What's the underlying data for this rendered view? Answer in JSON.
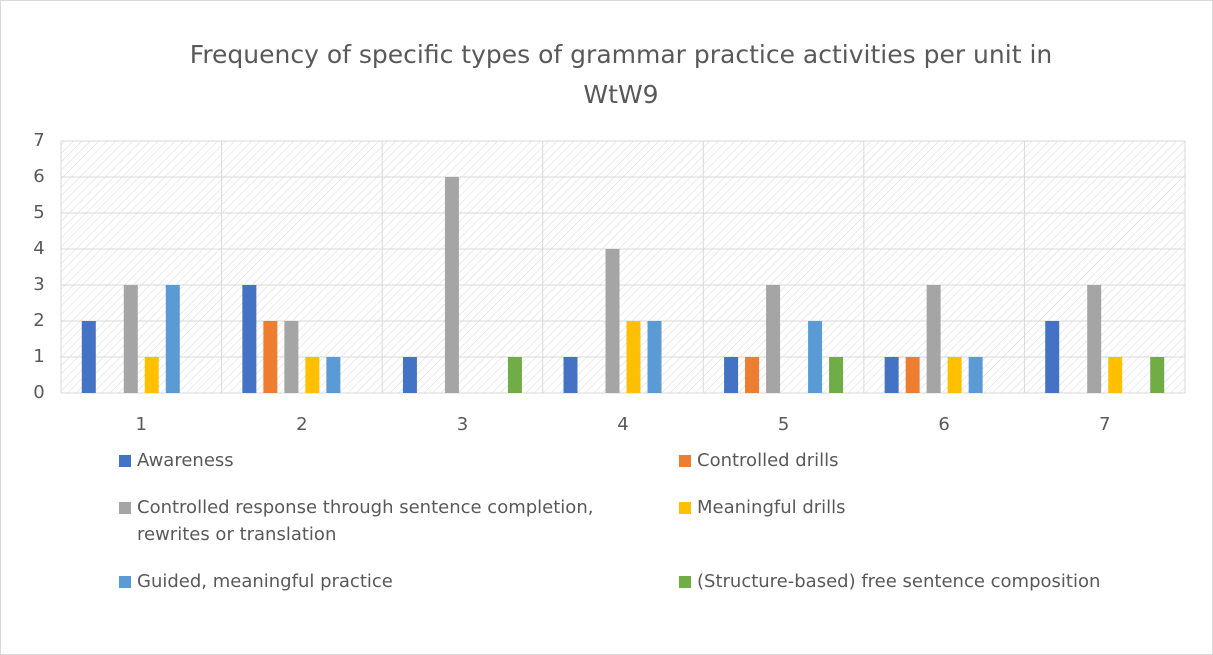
{
  "chart_data": {
    "type": "bar",
    "title": "Frequency of specific types of grammar practice activities per unit in WtW9",
    "categories": [
      "1",
      "2",
      "3",
      "4",
      "5",
      "6",
      "7"
    ],
    "series": [
      {
        "name": "Awareness",
        "color": "#4472c4",
        "values": [
          2,
          3,
          1,
          1,
          1,
          1,
          2
        ]
      },
      {
        "name": "Controlled drills",
        "color": "#ed7d31",
        "values": [
          0,
          2,
          0,
          0,
          1,
          1,
          0
        ]
      },
      {
        "name": "Controlled response through sentence completion, rewrites or translation",
        "color": "#a5a5a5",
        "values": [
          3,
          2,
          6,
          4,
          3,
          3,
          3
        ]
      },
      {
        "name": "Meaningful drills",
        "color": "#ffc000",
        "values": [
          1,
          1,
          0,
          2,
          0,
          1,
          1
        ]
      },
      {
        "name": "Guided, meaningful practice",
        "color": "#5b9bd5",
        "values": [
          3,
          1,
          0,
          2,
          2,
          1,
          0
        ]
      },
      {
        "name": "(Structure-based) free sentence composition",
        "color": "#70ad47",
        "values": [
          0,
          0,
          1,
          0,
          1,
          0,
          1
        ]
      }
    ],
    "ylim": [
      0,
      7
    ],
    "yticks": [
      0,
      1,
      2,
      3,
      4,
      5,
      6,
      7
    ],
    "grid": true
  }
}
